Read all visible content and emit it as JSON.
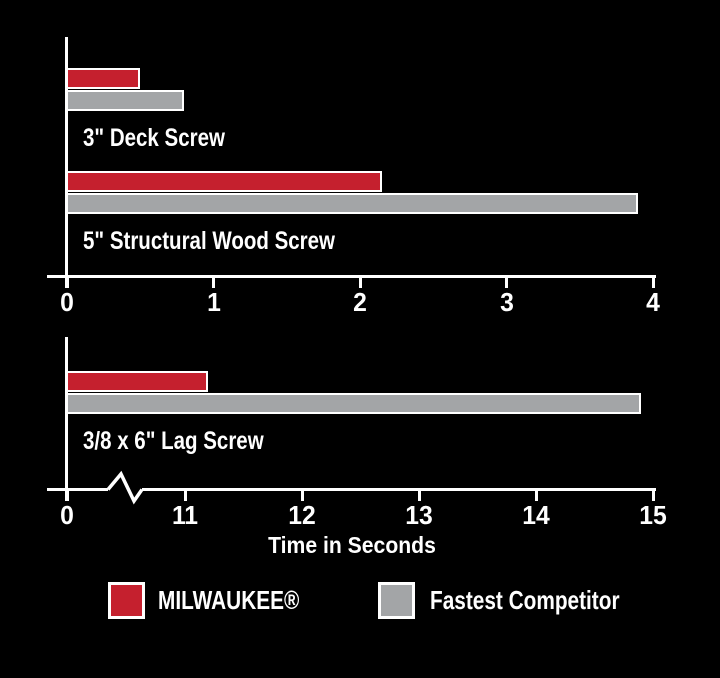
{
  "chart_data": [
    {
      "type": "bar",
      "orientation": "horizontal",
      "categories": [
        "3\" Deck Screw",
        "5\" Structural Wood Screw"
      ],
      "series": [
        {
          "name": "MILWAUKEE®",
          "values": [
            0.5,
            2.15
          ]
        },
        {
          "name": "Fastest Competitor",
          "values": [
            0.8,
            3.9
          ]
        }
      ],
      "xlim": [
        0,
        4
      ],
      "xticks": [
        0,
        1,
        2,
        3,
        4
      ],
      "axis_break": false,
      "xlabel": ""
    },
    {
      "type": "bar",
      "orientation": "horizontal",
      "categories": [
        "3/8 x 6\" Lag Screw"
      ],
      "series": [
        {
          "name": "MILWAUKEE®",
          "values": [
            11.2
          ]
        },
        {
          "name": "Fastest Competitor",
          "values": [
            14.9
          ]
        }
      ],
      "xlim": [
        0,
        15
      ],
      "xticks": [
        0,
        11,
        12,
        13,
        14,
        15
      ],
      "axis_break": true,
      "xlabel": "Time in Seconds"
    }
  ],
  "legend": {
    "items": [
      {
        "label": "MILWAUKEE®",
        "color": "#c5202e"
      },
      {
        "label": "Fastest Competitor",
        "color": "#a3a5a7"
      }
    ]
  },
  "colors": {
    "background": "#000000",
    "axis": "#ffffff",
    "text": "#ffffff",
    "milwaukee_red": "#c5202e",
    "competitor_gray": "#a3a5a7",
    "bar_border": "#ffffff"
  }
}
